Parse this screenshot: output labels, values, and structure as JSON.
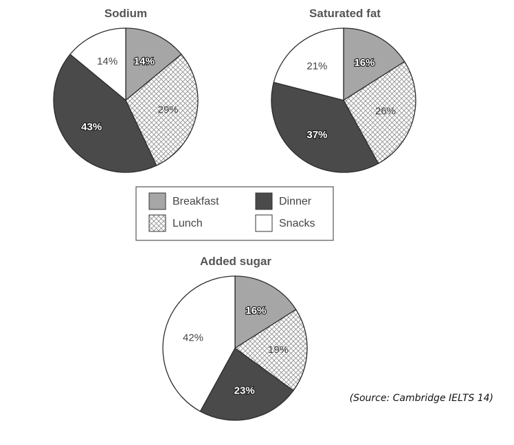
{
  "chart_data": [
    {
      "type": "pie",
      "title": "Sodium",
      "slices": [
        {
          "category": "Breakfast",
          "value": 14,
          "label": "14%"
        },
        {
          "category": "Lunch",
          "value": 29,
          "label": "29%"
        },
        {
          "category": "Dinner",
          "value": 43,
          "label": "43%"
        },
        {
          "category": "Snacks",
          "value": 14,
          "label": "14%"
        }
      ]
    },
    {
      "type": "pie",
      "title": "Saturated fat",
      "slices": [
        {
          "category": "Breakfast",
          "value": 16,
          "label": "16%"
        },
        {
          "category": "Lunch",
          "value": 26,
          "label": "26%"
        },
        {
          "category": "Dinner",
          "value": 37,
          "label": "37%"
        },
        {
          "category": "Snacks",
          "value": 21,
          "label": "21%"
        }
      ]
    },
    {
      "type": "pie",
      "title": "Added sugar",
      "slices": [
        {
          "category": "Breakfast",
          "value": 16,
          "label": "16%"
        },
        {
          "category": "Lunch",
          "value": 19,
          "label": "19%"
        },
        {
          "category": "Dinner",
          "value": 23,
          "label": "23%"
        },
        {
          "category": "Snacks",
          "value": 42,
          "label": "42%"
        }
      ]
    }
  ],
  "legend": {
    "placement": "center",
    "items": [
      {
        "category": "Breakfast",
        "label": "Breakfast",
        "fill": "solid",
        "color": "#a6a6a6"
      },
      {
        "category": "Dinner",
        "label": "Dinner",
        "fill": "solid",
        "color": "#4a4a4a"
      },
      {
        "category": "Lunch",
        "label": "Lunch",
        "fill": "crosshatch",
        "color": "#ffffff"
      },
      {
        "category": "Snacks",
        "label": "Snacks",
        "fill": "solid",
        "color": "#ffffff"
      }
    ]
  },
  "source": "(Source: Cambridge IELTS 14)"
}
